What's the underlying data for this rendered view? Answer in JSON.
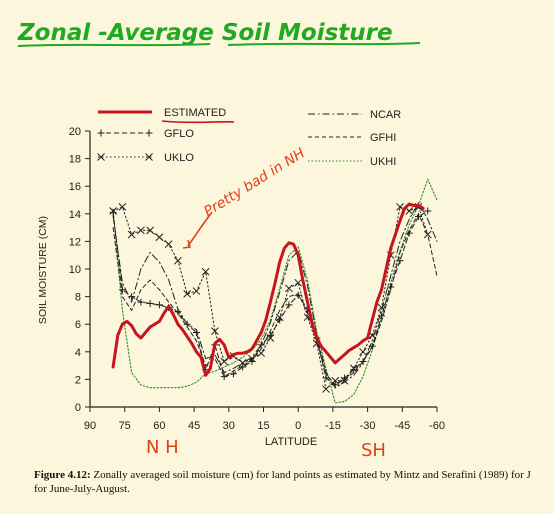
{
  "header": {
    "title": "Zonal -Average  Soil  Moisture"
  },
  "annotations": {
    "note": "Pretty bad in NH",
    "nh": "N H",
    "sh": "SH"
  },
  "caption": {
    "label": "Figure 4.12:",
    "line1": "Zonally averaged soil moisture (cm) for land points as estimated by Mintz and Serafini (1989) for J",
    "line2": "for June-July-August."
  },
  "colors": {
    "estimated": "#c8141c",
    "ink": "#222222",
    "title_green": "#1faa1f",
    "note_red": "#e0401c",
    "background": "#fbf6dc"
  },
  "chart_data": {
    "type": "line",
    "title": "",
    "xlabel": "LATITUDE",
    "ylabel": "SOIL MOISTURE (CM)",
    "xlim": [
      90,
      -60
    ],
    "ylim": [
      0,
      20
    ],
    "xticks": [
      90,
      75,
      60,
      45,
      30,
      15,
      0,
      -15,
      -30,
      -45,
      -60
    ],
    "yticks": [
      0,
      2,
      4,
      6,
      8,
      10,
      12,
      14,
      16,
      18,
      20
    ],
    "legend_position": "top",
    "grid": false,
    "series": [
      {
        "name": "ESTIMATED",
        "style": "solid-thick",
        "color": "#c8141c",
        "x": [
          80,
          78,
          76,
          74,
          72,
          70,
          68,
          66,
          64,
          62,
          60,
          58,
          56,
          54,
          52,
          50,
          48,
          46,
          44,
          42,
          40,
          38,
          36,
          34,
          32,
          30,
          28,
          26,
          24,
          22,
          20,
          18,
          16,
          14,
          12,
          10,
          8,
          6,
          4,
          2,
          0,
          -2,
          -4,
          -6,
          -8,
          -10,
          -12,
          -14,
          -16,
          -18,
          -20,
          -22,
          -24,
          -26,
          -28,
          -30,
          -32,
          -34,
          -36,
          -38,
          -40,
          -42,
          -44,
          -46,
          -48,
          -50,
          -52,
          -54
        ],
        "y": [
          2.9,
          5.2,
          6.0,
          6.2,
          5.9,
          5.3,
          5.0,
          5.4,
          5.8,
          6.0,
          6.2,
          6.8,
          7.3,
          6.7,
          6.0,
          5.6,
          5.1,
          4.6,
          4.0,
          3.6,
          2.3,
          2.8,
          4.6,
          4.9,
          4.5,
          3.6,
          3.8,
          3.9,
          3.9,
          4.0,
          4.2,
          4.8,
          5.4,
          6.3,
          7.6,
          9.0,
          10.5,
          11.5,
          11.9,
          11.8,
          11.0,
          9.2,
          7.6,
          6.1,
          5.0,
          4.4,
          4.0,
          3.6,
          3.2,
          3.5,
          3.8,
          4.1,
          4.3,
          4.5,
          4.8,
          5.0,
          6.3,
          7.6,
          8.5,
          10.0,
          11.5,
          12.5,
          13.5,
          14.4,
          14.7,
          14.6,
          14.6,
          14.4
        ]
      },
      {
        "name": "GFLO",
        "style": "dashed-plus",
        "color": "#222222",
        "x": [
          80,
          76,
          72,
          68,
          64,
          60,
          56,
          52,
          48,
          44,
          40,
          36,
          32,
          28,
          24,
          20,
          16,
          12,
          8,
          4,
          0,
          -4,
          -8,
          -12,
          -16,
          -20,
          -24,
          -28,
          -32,
          -36,
          -40,
          -44,
          -48,
          -52,
          -56
        ],
        "y": [
          14.1,
          8.5,
          8.0,
          7.6,
          7.5,
          7.4,
          7.2,
          6.9,
          6.0,
          5.4,
          2.7,
          4.5,
          2.2,
          2.4,
          2.9,
          3.3,
          4.5,
          5.2,
          6.3,
          7.4,
          8.1,
          7.1,
          5.0,
          2.1,
          1.6,
          2.1,
          2.7,
          3.3,
          4.4,
          6.6,
          8.7,
          10.6,
          12.6,
          13.8,
          14.2
        ]
      },
      {
        "name": "UKLO",
        "style": "dotted-x",
        "color": "#222222",
        "x": [
          80,
          76,
          72,
          68,
          64,
          60,
          56,
          52,
          48,
          44,
          40,
          36,
          32,
          28,
          24,
          20,
          16,
          12,
          8,
          4,
          0,
          -4,
          -8,
          -12,
          -16,
          -20,
          -24,
          -28,
          -32,
          -36,
          -40,
          -44,
          -48,
          -52,
          -56
        ],
        "y": [
          14.2,
          14.5,
          12.5,
          12.8,
          12.8,
          12.3,
          11.8,
          10.6,
          8.2,
          8.4,
          9.8,
          5.5,
          3.3,
          3.7,
          3.2,
          3.5,
          3.9,
          5.0,
          6.5,
          8.6,
          9.0,
          6.5,
          4.6,
          1.3,
          1.9,
          1.9,
          2.8,
          4.0,
          5.2,
          7.2,
          11.0,
          14.5,
          14.2,
          14.5,
          12.5
        ]
      },
      {
        "name": "NCAR",
        "style": "dashdot",
        "color": "#222222",
        "x": [
          80,
          76,
          72,
          68,
          64,
          60,
          56,
          52,
          48,
          44,
          40,
          36,
          32,
          28,
          24,
          20,
          16,
          12,
          8,
          4,
          0,
          -4,
          -8,
          -12,
          -16,
          -20,
          -24,
          -28,
          -32,
          -36,
          -40,
          -44,
          -48,
          -52,
          -56,
          -60
        ],
        "y": [
          13.8,
          9.0,
          7.6,
          10.0,
          11.2,
          10.5,
          9.2,
          7.1,
          6.0,
          5.6,
          3.5,
          3.8,
          2.5,
          2.8,
          3.2,
          3.6,
          4.5,
          6.1,
          8.3,
          10.6,
          11.3,
          8.8,
          5.2,
          2.5,
          1.4,
          1.8,
          2.3,
          3.2,
          4.8,
          7.0,
          9.5,
          12.0,
          13.6,
          14.8,
          13.6,
          12.0
        ]
      },
      {
        "name": "GFHI",
        "style": "dashed",
        "color": "#222222",
        "x": [
          80,
          76,
          72,
          68,
          64,
          60,
          56,
          52,
          48,
          44,
          40,
          36,
          32,
          28,
          24,
          20,
          16,
          12,
          8,
          4,
          0,
          -4,
          -8,
          -12,
          -16,
          -20,
          -24,
          -28,
          -32,
          -36,
          -40,
          -44,
          -48,
          -52,
          -56,
          -60
        ],
        "y": [
          13.0,
          8.0,
          7.0,
          8.5,
          9.2,
          8.5,
          7.6,
          6.8,
          5.8,
          4.8,
          3.0,
          3.5,
          2.2,
          2.6,
          3.0,
          3.4,
          4.2,
          5.5,
          7.0,
          8.0,
          8.2,
          6.8,
          4.8,
          2.4,
          1.6,
          2.0,
          2.5,
          3.3,
          4.3,
          6.2,
          8.5,
          11.2,
          12.8,
          14.0,
          12.5,
          9.5
        ]
      },
      {
        "name": "UKHI",
        "style": "dotted",
        "color": "#2f8a2f",
        "x": [
          80,
          76,
          72,
          68,
          64,
          60,
          56,
          52,
          48,
          44,
          40,
          36,
          32,
          28,
          24,
          20,
          16,
          12,
          8,
          4,
          0,
          -4,
          -8,
          -12,
          -16,
          -20,
          -24,
          -28,
          -32,
          -36,
          -40,
          -44,
          -48,
          -52,
          -56,
          -60
        ],
        "y": [
          14.3,
          7.0,
          2.5,
          1.6,
          1.4,
          1.4,
          1.4,
          1.4,
          1.5,
          1.8,
          2.4,
          2.6,
          2.9,
          3.2,
          3.6,
          4.1,
          4.9,
          6.3,
          8.6,
          11.0,
          11.6,
          9.2,
          5.5,
          2.8,
          0.3,
          0.4,
          0.9,
          2.2,
          4.1,
          6.5,
          9.0,
          11.3,
          13.2,
          14.6,
          16.5,
          15.0
        ]
      }
    ]
  }
}
